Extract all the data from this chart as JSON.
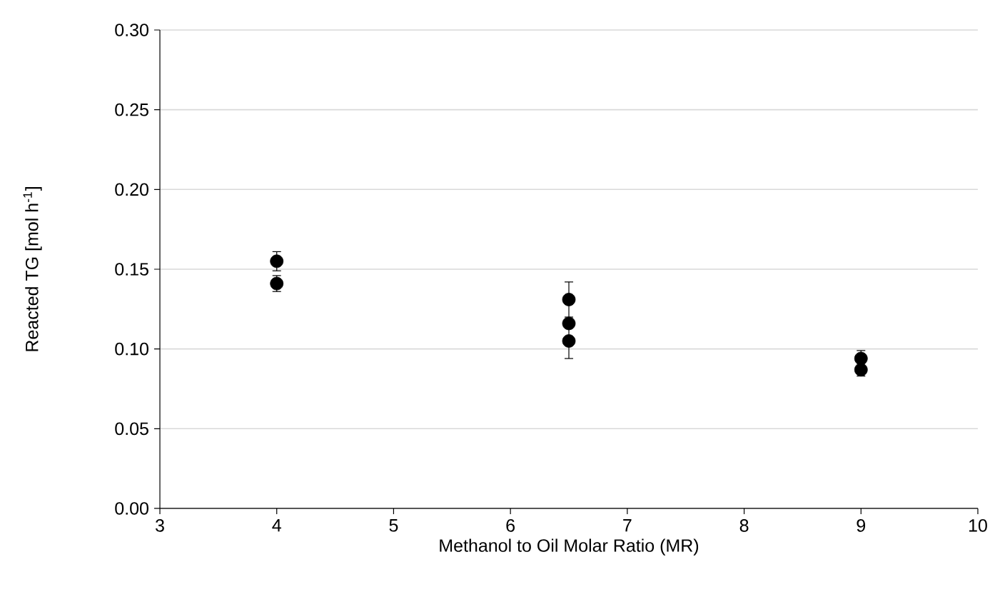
{
  "chart_data": {
    "type": "scatter",
    "xlabel": "Methanol to Oil Molar Ratio (MR)",
    "ylabel": "Reacted TG [mol h$^{-1}$]",
    "x": [
      4,
      4,
      6.5,
      6.5,
      6.5,
      9,
      9
    ],
    "series": [
      {
        "color": "#000000",
        "values": [
          0.155,
          0.141,
          0.131,
          0.116,
          0.105,
          0.094,
          0.087
        ],
        "errors": [
          0.006,
          0.005,
          0.011,
          null,
          0.011,
          0.005,
          0.004
        ]
      }
    ],
    "xlim": [
      3,
      10
    ],
    "xticks": [
      3,
      4,
      5,
      6,
      7,
      8,
      9,
      10
    ],
    "ylim": [
      0,
      0.3
    ],
    "yticks": [
      {
        "value": 0,
        "label": "0.00"
      },
      {
        "value": 0.05,
        "label": "0.05"
      },
      {
        "value": 0.1,
        "label": "0.10"
      },
      {
        "value": 0.15,
        "label": "0.15"
      },
      {
        "value": 0.2,
        "label": "0.20"
      },
      {
        "value": 0.25,
        "label": "0.25"
      },
      {
        "value": 0.3,
        "label": "0.30"
      }
    ],
    "grid": "y",
    "marker": "circle"
  }
}
